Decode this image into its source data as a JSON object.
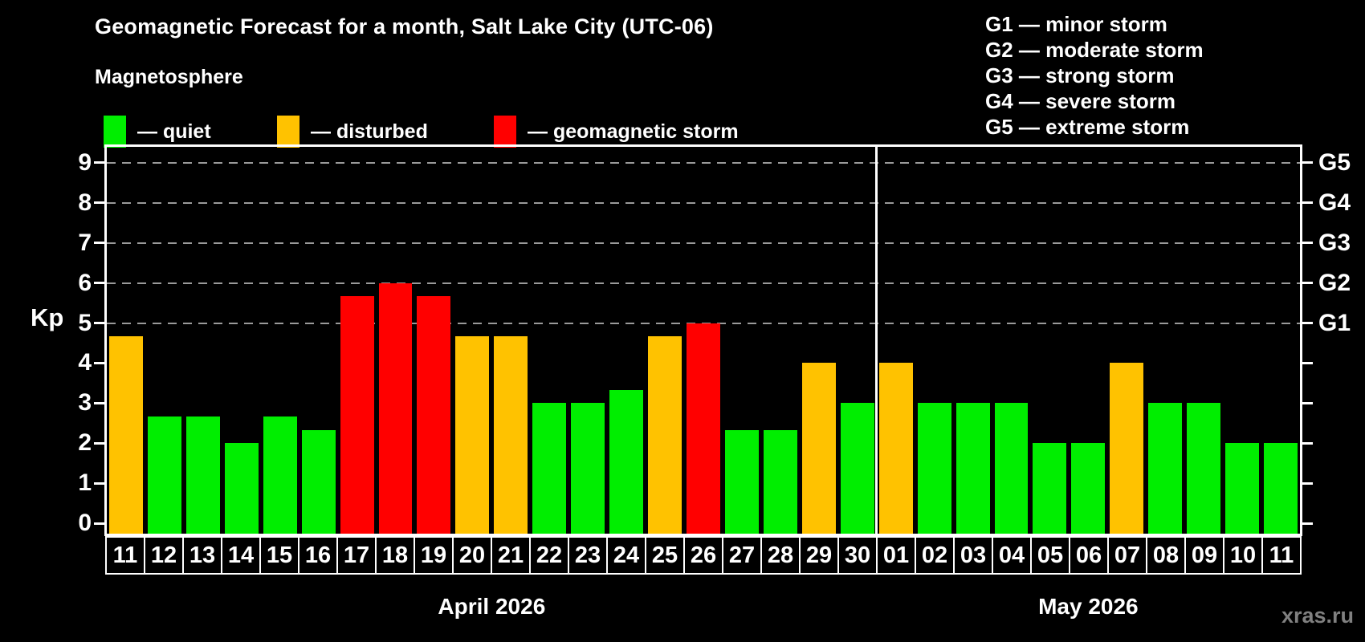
{
  "header": {
    "title": "Geomagnetic Forecast for a month, Salt Lake City (UTC-06)",
    "subtitle": "Magnetosphere"
  },
  "legend": {
    "quiet": {
      "label": "— quiet"
    },
    "disturbed": {
      "label": "— disturbed"
    },
    "storm": {
      "label": "— geomagnetic storm"
    }
  },
  "g_legend": [
    "G1 — minor storm",
    "G2 — moderate storm",
    "G3 — strong storm",
    "G4 — severe storm",
    "G5 — extreme storm"
  ],
  "axis": {
    "y_label": "Kp",
    "y_ticks": [
      0,
      1,
      2,
      3,
      4,
      5,
      6,
      7,
      8,
      9
    ],
    "right_labels": [
      {
        "kp": 5,
        "label": "G1"
      },
      {
        "kp": 6,
        "label": "G2"
      },
      {
        "kp": 7,
        "label": "G3"
      },
      {
        "kp": 8,
        "label": "G4"
      },
      {
        "kp": 9,
        "label": "G5"
      }
    ]
  },
  "colors": {
    "quiet": "#00ee00",
    "disturbed": "#ffc200",
    "storm": "#ff0000",
    "grid": "#9a9a9a",
    "axis": "#ffffff",
    "watermark": "#808080"
  },
  "months": [
    {
      "label": "April 2026",
      "days": [
        "11",
        "12",
        "13",
        "14",
        "15",
        "16",
        "17",
        "18",
        "19",
        "20",
        "21",
        "22",
        "23",
        "24",
        "25",
        "26",
        "27",
        "28",
        "29",
        "30"
      ]
    },
    {
      "label": "May 2026",
      "days": [
        "01",
        "02",
        "03",
        "04",
        "05",
        "06",
        "07",
        "08",
        "09",
        "10",
        "11"
      ]
    }
  ],
  "watermark": "xras.ru",
  "chart_data": {
    "type": "bar",
    "title": "Geomagnetic Forecast for a month, Salt Lake City (UTC-06)",
    "xlabel": "",
    "ylabel": "Kp",
    "ylim": [
      0,
      9.5
    ],
    "grid": "dashed horizontal lines at Kp 5,6,7,8,9 (storm levels G1–G5)",
    "legend_position": "top",
    "month_split": 20,
    "categories": [
      "Apr 11",
      "Apr 12",
      "Apr 13",
      "Apr 14",
      "Apr 15",
      "Apr 16",
      "Apr 17",
      "Apr 18",
      "Apr 19",
      "Apr 20",
      "Apr 21",
      "Apr 22",
      "Apr 23",
      "Apr 24",
      "Apr 25",
      "Apr 26",
      "Apr 27",
      "Apr 28",
      "Apr 29",
      "Apr 30",
      "May 01",
      "May 02",
      "May 03",
      "May 04",
      "May 05",
      "May 06",
      "May 07",
      "May 08",
      "May 09",
      "May 10",
      "May 11"
    ],
    "series": [
      {
        "name": "Kp forecast",
        "values": [
          4.67,
          2.67,
          2.67,
          2.0,
          2.67,
          2.33,
          5.67,
          6.0,
          5.67,
          4.67,
          4.67,
          3.0,
          3.0,
          3.33,
          4.67,
          5.0,
          2.33,
          2.33,
          4.0,
          3.0,
          4.0,
          3.0,
          3.0,
          3.0,
          2.0,
          2.0,
          4.0,
          3.0,
          3.0,
          2.0,
          2.0
        ],
        "statuses": [
          "disturbed",
          "quiet",
          "quiet",
          "quiet",
          "quiet",
          "quiet",
          "storm",
          "storm",
          "storm",
          "disturbed",
          "disturbed",
          "quiet",
          "quiet",
          "quiet",
          "disturbed",
          "storm",
          "quiet",
          "quiet",
          "disturbed",
          "quiet",
          "disturbed",
          "quiet",
          "quiet",
          "quiet",
          "quiet",
          "quiet",
          "disturbed",
          "quiet",
          "quiet",
          "quiet",
          "quiet"
        ]
      }
    ]
  }
}
